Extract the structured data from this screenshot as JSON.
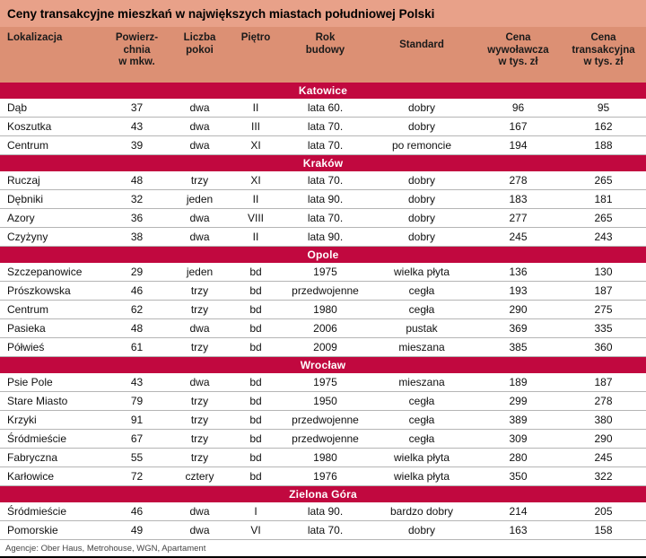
{
  "columns_display": [
    "Lokalizacja",
    "Powierz-\nchnia\nw mkw.",
    "Liczba\npokoi",
    "Piętro",
    "Rok\nbudowy",
    "Standard",
    "Cena\nwywoławcza\nw tys. zł",
    "Cena\ntransakcyjna\nw tys. zł"
  ],
  "footer": "Agencje: Ober Haus, Metrohouse, WGN, Apartament",
  "colors": {
    "title_bg": "#e8a189",
    "header_bg": "#dc9074",
    "section_bg": "#c1083f",
    "section_text": "#ffffff",
    "row_divider": "#b5b5b5"
  },
  "chart_data": {
    "type": "table",
    "title": "Ceny transakcyjne mieszkań w największych miastach południowej Polski",
    "columns": [
      "Lokalizacja",
      "Powierzchnia w mkw.",
      "Liczba pokoi",
      "Piętro",
      "Rok budowy",
      "Standard",
      "Cena wywoławcza w tys. zł",
      "Cena transakcyjna w tys. zł"
    ],
    "sections": [
      {
        "city": "Katowice",
        "rows": [
          [
            "Dąb",
            37,
            "dwa",
            "II",
            "lata 60.",
            "dobry",
            96,
            95
          ],
          [
            "Koszutka",
            43,
            "dwa",
            "III",
            "lata 70.",
            "dobry",
            167,
            162
          ],
          [
            "Centrum",
            39,
            "dwa",
            "XI",
            "lata 70.",
            "po remoncie",
            194,
            188
          ]
        ]
      },
      {
        "city": "Kraków",
        "rows": [
          [
            "Ruczaj",
            48,
            "trzy",
            "XI",
            "lata 70.",
            "dobry",
            278,
            265
          ],
          [
            "Dębniki",
            32,
            "jeden",
            "II",
            "lata 90.",
            "dobry",
            183,
            181
          ],
          [
            "Azory",
            36,
            "dwa",
            "VIII",
            "lata 70.",
            "dobry",
            277,
            265
          ],
          [
            "Czyżyny",
            38,
            "dwa",
            "II",
            "lata 90.",
            "dobry",
            245,
            243
          ]
        ]
      },
      {
        "city": "Opole",
        "rows": [
          [
            "Szczepanowice",
            29,
            "jeden",
            "bd",
            "1975",
            "wielka płyta",
            136,
            130
          ],
          [
            "Prószkowska",
            46,
            "trzy",
            "bd",
            "przedwojenne",
            "cegła",
            193,
            187
          ],
          [
            "Centrum",
            62,
            "trzy",
            "bd",
            "1980",
            "cegła",
            290,
            275
          ],
          [
            "Pasieka",
            48,
            "dwa",
            "bd",
            "2006",
            "pustak",
            369,
            335
          ],
          [
            "Półwieś",
            61,
            "trzy",
            "bd",
            "2009",
            "mieszana",
            385,
            360
          ]
        ]
      },
      {
        "city": "Wrocław",
        "rows": [
          [
            "Psie Pole",
            43,
            "dwa",
            "bd",
            "1975",
            "mieszana",
            189,
            187
          ],
          [
            "Stare Miasto",
            79,
            "trzy",
            "bd",
            "1950",
            "cegła",
            299,
            278
          ],
          [
            "Krzyki",
            91,
            "trzy",
            "bd",
            "przedwojenne",
            "cegła",
            389,
            380
          ],
          [
            "Śródmieście",
            67,
            "trzy",
            "bd",
            "przedwojenne",
            "cegła",
            309,
            290
          ],
          [
            "Fabryczna",
            55,
            "trzy",
            "bd",
            "1980",
            "wielka płyta",
            280,
            245
          ],
          [
            "Karłowice",
            72,
            "cztery",
            "bd",
            "1976",
            "wielka płyta",
            350,
            322
          ]
        ]
      },
      {
        "city": "Zielona Góra",
        "rows": [
          [
            "Śródmieście",
            46,
            "dwa",
            "I",
            "lata 90.",
            "bardzo dobry",
            214,
            205
          ],
          [
            "Pomorskie",
            49,
            "dwa",
            "VI",
            "lata 70.",
            "dobry",
            163,
            158
          ]
        ]
      }
    ]
  }
}
